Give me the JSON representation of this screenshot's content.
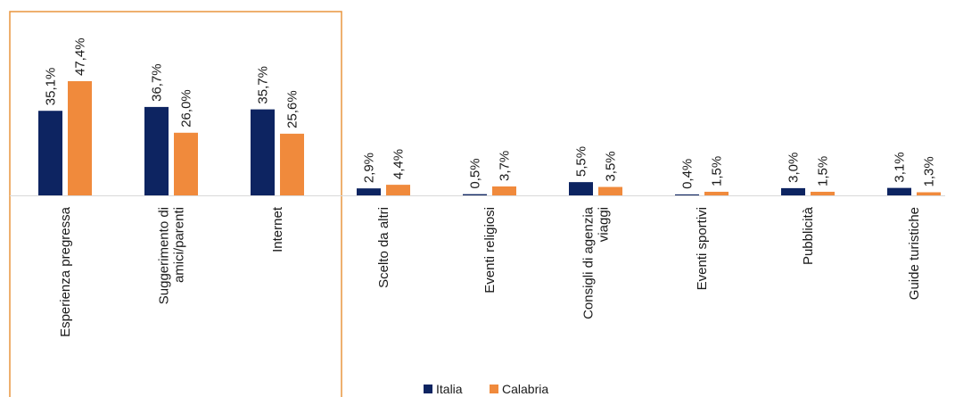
{
  "chart_data": {
    "type": "bar",
    "categories": [
      [
        "Esperienza pregressa"
      ],
      [
        "Suggerimento di",
        "amici/parenti"
      ],
      [
        "Internet"
      ],
      [
        "Scelto da altri"
      ],
      [
        "Eventi religiosi"
      ],
      [
        "Consigli di agenzia",
        "viaggi"
      ],
      [
        "Eventi sportivi"
      ],
      [
        "Pubblicità"
      ],
      [
        "Guide turistiche"
      ]
    ],
    "series": [
      {
        "name": "Italia",
        "color": "#0d2461",
        "values": [
          35.1,
          36.7,
          35.7,
          2.9,
          0.5,
          5.5,
          0.4,
          3.0,
          3.1
        ],
        "labels": [
          "35,1%",
          "36,7%",
          "35,7%",
          "2,9%",
          "0,5%",
          "5,5%",
          "0,4%",
          "3,0%",
          "3,1%"
        ]
      },
      {
        "name": "Calabria",
        "color": "#f08a3c",
        "values": [
          47.4,
          26.0,
          25.6,
          4.4,
          3.7,
          3.5,
          1.5,
          1.5,
          1.3
        ],
        "labels": [
          "47,4%",
          "26,0%",
          "25,6%",
          "4,4%",
          "3,7%",
          "3,5%",
          "1,5%",
          "1,5%",
          "1,3%"
        ]
      }
    ],
    "ylim": [
      0,
      50
    ],
    "grid": false,
    "legend_position": "bottom",
    "highlight": {
      "categories": [
        0,
        1,
        2
      ],
      "color": "#e8953f"
    }
  }
}
